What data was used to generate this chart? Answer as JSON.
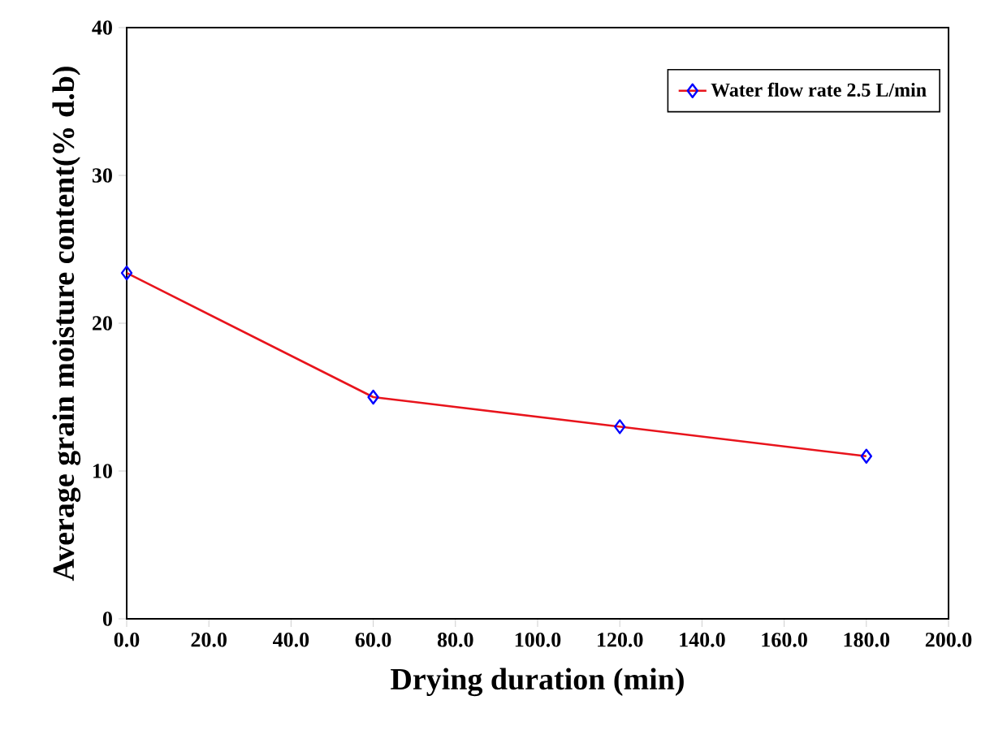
{
  "chart_data": {
    "type": "line",
    "xlabel": "Drying duration (min)",
    "ylabel": "Average grain moisture content(% d.b)",
    "x": [
      0,
      60,
      120,
      180
    ],
    "series": [
      {
        "name": "Water flow rate 2.5 L/min",
        "color": "#e8141c",
        "values": [
          23.4,
          15.0,
          13.0,
          11.0
        ]
      }
    ],
    "marker": "diamond",
    "line_style": "solid",
    "legend": "top right",
    "grid": false,
    "xlim": [
      0,
      200
    ],
    "ylim": [
      0,
      40
    ],
    "xticks": [
      {
        "value": 0,
        "label": "0.0"
      },
      {
        "value": 20,
        "label": "20.0"
      },
      {
        "value": 40,
        "label": "40.0"
      },
      {
        "value": 60,
        "label": "60.0"
      },
      {
        "value": 80,
        "label": "80.0"
      },
      {
        "value": 100,
        "label": "100.0"
      },
      {
        "value": 120,
        "label": "120.0"
      },
      {
        "value": 140,
        "label": "140.0"
      },
      {
        "value": 160,
        "label": "160.0"
      },
      {
        "value": 180,
        "label": "180.0"
      },
      {
        "value": 200,
        "label": "200.0"
      }
    ],
    "yticks": [
      0,
      10,
      20,
      30,
      40
    ]
  }
}
